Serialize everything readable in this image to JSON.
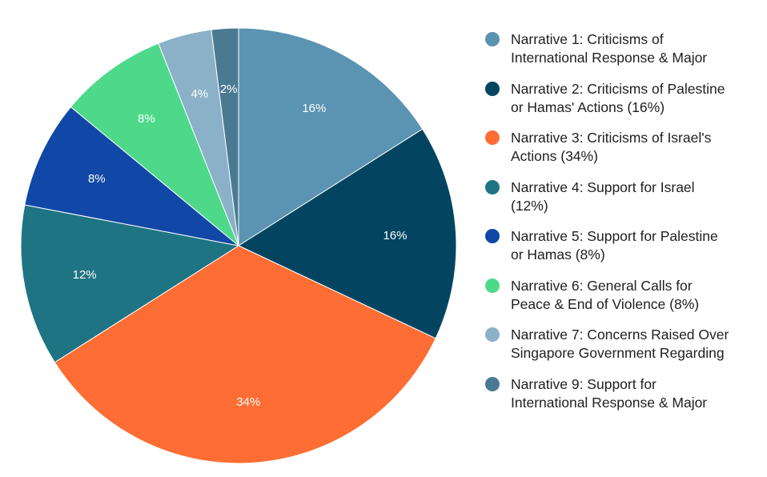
{
  "chart_data": {
    "type": "pie",
    "title": "",
    "slices": [
      {
        "label": "Narrative 1: Criticisms of\nInternational Response & Major",
        "value": 16,
        "display": "16%",
        "color": "#5b93b2"
      },
      {
        "label": "Narrative 2: Criticisms of Palestine\nor Hamas' Actions (16%)",
        "value": 16,
        "display": "16%",
        "color": "#034561"
      },
      {
        "label": "Narrative 3: Criticisms of Israel's\nActions (34%)",
        "value": 34,
        "display": "34%",
        "color": "#fe6d33"
      },
      {
        "label": "Narrative 4: Support for Israel\n(12%)",
        "value": 12,
        "display": "12%",
        "color": "#1f7484"
      },
      {
        "label": "Narrative 5: Support for Palestine\nor Hamas (8%)",
        "value": 8,
        "display": "8%",
        "color": "#1147a7"
      },
      {
        "label": "Narrative 6: General Calls for\nPeace & End of Violence (8%)",
        "value": 8,
        "display": "8%",
        "color": "#4ed98a"
      },
      {
        "label": "Narrative 7: Concerns Raised Over\nSingapore Government Regarding",
        "value": 4,
        "display": "4%",
        "color": "#8ab1c8"
      },
      {
        "label": "Narrative 9: Support for\nInternational Response & Major",
        "value": 2,
        "display": "2%",
        "color": "#4a7a92"
      }
    ],
    "start_angle_deg": 0,
    "direction": "clockwise",
    "legend": "right"
  }
}
